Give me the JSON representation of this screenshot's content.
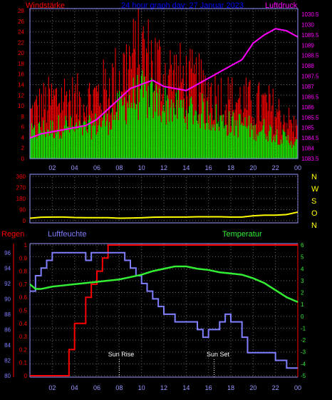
{
  "colors": {
    "wind_avg": "#00ff00",
    "wind_gust": "#ff0000",
    "pressure": "#ff00ff",
    "direction": "#ffff00",
    "humidity": "#7f7fff",
    "rain": "#ff0000",
    "temperature": "#33ee33",
    "axis": "#9999ff",
    "grid": "#666666"
  },
  "chart_data": [
    {
      "type": "bar",
      "title": "24 hour graph day: 27 Januar 2023",
      "left_label": "Windstärke",
      "right_label": "Luftdruck",
      "x_ticks": [
        "02",
        "04",
        "06",
        "08",
        "10",
        "12",
        "14",
        "16",
        "18",
        "20",
        "22",
        "00"
      ],
      "left_ticks": [
        "0",
        "2",
        "4",
        "6",
        "8",
        "10",
        "12",
        "14",
        "16",
        "18",
        "20",
        "22",
        "24",
        "26",
        "28"
      ],
      "right_ticks": [
        "1083.5",
        "1084",
        "1084.5",
        "1085",
        "1085.5",
        "1086",
        "1086.5",
        "1087",
        "1087.5",
        "1088",
        "1088.5",
        "1089",
        "1089.5",
        "1030",
        "1030.5"
      ],
      "left_range": [
        0,
        28
      ],
      "right_range": [
        1083.5,
        1090.5
      ],
      "hours": [
        0,
        1,
        2,
        3,
        4,
        5,
        6,
        7,
        8,
        9,
        10,
        11,
        12,
        13,
        14,
        15,
        16,
        17,
        18,
        19,
        20,
        21,
        22,
        23,
        24
      ],
      "series": [
        {
          "name": "Windstärke",
          "kind": "avg",
          "values": [
            5,
            6,
            6,
            7,
            6,
            6,
            7,
            8,
            10,
            12,
            13,
            12,
            11,
            11,
            10,
            10,
            9,
            8,
            7,
            7,
            6,
            6,
            5,
            4,
            3
          ]
        },
        {
          "name": "Böen",
          "kind": "gust",
          "values": [
            9,
            11,
            12,
            13,
            12,
            12,
            13,
            15,
            17,
            20,
            22,
            20,
            18,
            17,
            16,
            15,
            14,
            13,
            12,
            12,
            11,
            11,
            10,
            8,
            6
          ]
        },
        {
          "name": "Luftdruck",
          "kind": "line",
          "values": [
            1084.5,
            1084.7,
            1084.8,
            1084.9,
            1085.0,
            1085.1,
            1085.4,
            1085.9,
            1086.4,
            1086.9,
            1087.1,
            1087.3,
            1087.0,
            1086.9,
            1086.8,
            1087.1,
            1087.4,
            1087.7,
            1088.0,
            1088.3,
            1089.1,
            1089.5,
            1089.8,
            1089.7,
            1089.4
          ]
        }
      ]
    },
    {
      "type": "line",
      "right_letters": [
        "N",
        "W",
        "S",
        "O",
        "N"
      ],
      "x_ticks": [
        "02",
        "04",
        "06",
        "08",
        "10",
        "12",
        "14",
        "16",
        "18",
        "20",
        "22",
        "00"
      ],
      "y_ticks": [
        "0",
        "90",
        "180",
        "270",
        "360"
      ],
      "y_range": [
        0,
        360
      ],
      "hours": [
        0,
        1,
        2,
        3,
        4,
        5,
        6,
        7,
        8,
        9,
        10,
        11,
        12,
        13,
        14,
        15,
        16,
        17,
        18,
        19,
        20,
        21,
        22,
        23,
        24
      ],
      "series": [
        {
          "name": "Windrichtung",
          "values": [
            20,
            28,
            30,
            30,
            26,
            25,
            25,
            25,
            20,
            22,
            24,
            28,
            30,
            30,
            30,
            32,
            32,
            32,
            30,
            30,
            40,
            45,
            45,
            50,
            70
          ]
        }
      ]
    },
    {
      "type": "line",
      "labels": {
        "rain": "Regen",
        "humidity": "Luftfeuchte",
        "temperature": "Temperatur"
      },
      "annotations": [
        "Sun Rise",
        "Sun Set"
      ],
      "annotation_hours": [
        8.0,
        16.5
      ],
      "x_ticks": [
        "02",
        "04",
        "06",
        "08",
        "10",
        "12",
        "14",
        "16",
        "18",
        "20",
        "22",
        "00"
      ],
      "rain_ticks": [
        "0",
        "0.1",
        "0.2",
        "0.3",
        "0.4",
        "0.5",
        "0.6",
        "0.7",
        "0.8",
        "0.9",
        "1"
      ],
      "humidity_ticks": [
        "80",
        "82",
        "84",
        "86",
        "88",
        "90",
        "92",
        "94",
        "96"
      ],
      "temperature_ticks": [
        "-5",
        "-4",
        "-3",
        "-2",
        "-1",
        "0",
        "1",
        "2",
        "3",
        "4",
        "5",
        "6"
      ],
      "rain_range": [
        0,
        1
      ],
      "humidity_range": [
        80,
        97
      ],
      "temperature_range": [
        -5,
        6
      ],
      "rain": {
        "hours": [
          0,
          3.5,
          3.5,
          4.0,
          4.0,
          5.0,
          5.0,
          5.5,
          5.5,
          6.0,
          6.0,
          6.5,
          6.5,
          7.0,
          7.0,
          24.0
        ],
        "values": [
          0,
          0,
          0.2,
          0.2,
          0.4,
          0.4,
          0.6,
          0.6,
          0.7,
          0.7,
          0.8,
          0.8,
          0.9,
          0.9,
          1.0,
          1.0
        ]
      },
      "humidity": {
        "hours": [
          0,
          0.5,
          0.5,
          1,
          1,
          1.5,
          1.5,
          2,
          2,
          2.5,
          2.5,
          5,
          5,
          5.5,
          5.5,
          7,
          7,
          8.5,
          8.5,
          9,
          9,
          9.5,
          9.5,
          10,
          10,
          10.5,
          10.5,
          11,
          11,
          11.5,
          11.5,
          12,
          12,
          13,
          13,
          14.5,
          14.5,
          15,
          15,
          15.5,
          15.5,
          16,
          16,
          17,
          17,
          17.5,
          17.5,
          18,
          18,
          19,
          19,
          19.5,
          19.5,
          20,
          20,
          20.5,
          20.5,
          22,
          22,
          23,
          23,
          23.5,
          23.5,
          24
        ],
        "values": [
          91,
          91,
          93,
          93,
          94,
          94,
          95,
          95,
          96,
          96,
          96,
          96,
          95,
          95,
          96,
          96,
          96,
          96,
          95,
          95,
          94,
          94,
          93,
          93,
          92,
          92,
          91,
          91,
          90,
          90,
          89,
          89,
          88,
          88,
          87,
          87,
          87,
          87,
          86,
          86,
          85,
          85,
          86,
          86,
          87,
          87,
          88,
          88,
          87,
          87,
          85,
          85,
          83,
          83,
          83,
          83,
          83,
          83,
          82,
          82,
          81,
          81,
          81,
          81
        ]
      },
      "temperature": {
        "hours": [
          0,
          0.5,
          1,
          2,
          3,
          4,
          5,
          6,
          7,
          8,
          9,
          10,
          11,
          12,
          13,
          14,
          15,
          16,
          17,
          18,
          19,
          20,
          21,
          22,
          23,
          24
        ],
        "values": [
          2.7,
          2.3,
          2.3,
          2.5,
          2.6,
          2.7,
          2.8,
          2.9,
          3.0,
          3.1,
          3.3,
          3.5,
          3.8,
          4.0,
          4.2,
          4.2,
          4.0,
          3.9,
          3.7,
          3.6,
          3.5,
          3.2,
          2.8,
          2.2,
          1.6,
          1.2
        ]
      }
    }
  ]
}
